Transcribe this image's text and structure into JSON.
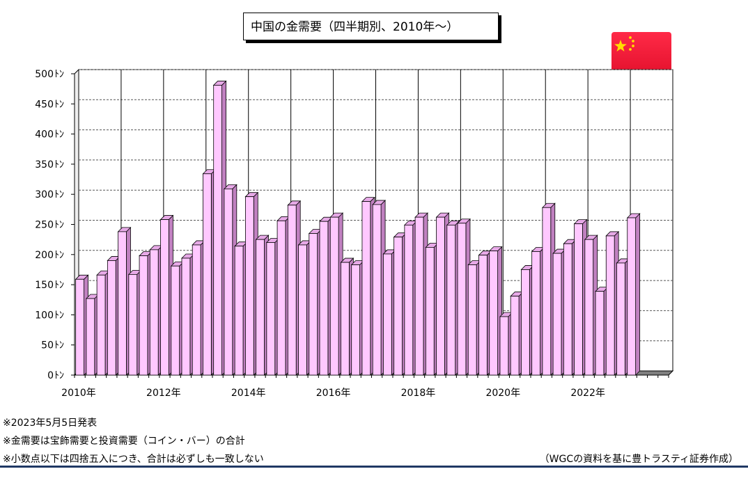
{
  "chart_data": {
    "type": "bar",
    "title": "中国の金需要（四半期別、2010年～）",
    "unit": "ﾄﾝ",
    "ylim": [
      0,
      500
    ],
    "y_ticks": [
      0,
      50,
      100,
      150,
      200,
      250,
      300,
      350,
      400,
      450,
      500
    ],
    "x_tick_labels": [
      "2010年",
      "2012年",
      "2014年",
      "2016年",
      "2018年",
      "2020年",
      "2022年"
    ],
    "categories": [
      "2010Q1",
      "2010Q2",
      "2010Q3",
      "2010Q4",
      "2011Q1",
      "2011Q2",
      "2011Q3",
      "2011Q4",
      "2012Q1",
      "2012Q2",
      "2012Q3",
      "2012Q4",
      "2013Q1",
      "2013Q2",
      "2013Q3",
      "2013Q4",
      "2014Q1",
      "2014Q2",
      "2014Q3",
      "2014Q4",
      "2015Q1",
      "2015Q2",
      "2015Q3",
      "2015Q4",
      "2016Q1",
      "2016Q2",
      "2016Q3",
      "2016Q4",
      "2017Q1",
      "2017Q2",
      "2017Q3",
      "2017Q4",
      "2018Q1",
      "2018Q2",
      "2018Q3",
      "2018Q4",
      "2019Q1",
      "2019Q2",
      "2019Q3",
      "2019Q4",
      "2020Q1",
      "2020Q2",
      "2020Q3",
      "2020Q4",
      "2021Q1",
      "2021Q2",
      "2021Q3",
      "2021Q4",
      "2022Q1",
      "2022Q2",
      "2022Q3",
      "2022Q4",
      "2023Q1"
    ],
    "values": [
      159,
      127,
      166,
      190,
      238,
      167,
      198,
      208,
      258,
      181,
      194,
      216,
      334,
      481,
      309,
      214,
      296,
      225,
      220,
      256,
      282,
      216,
      235,
      255,
      262,
      187,
      183,
      288,
      283,
      201,
      229,
      249,
      262,
      212,
      262,
      249,
      252,
      183,
      199,
      206,
      97,
      131,
      175,
      205,
      278,
      202,
      218,
      251,
      225,
      139,
      231,
      186,
      261
    ],
    "bar_color": "#ffc8ff",
    "grid": true
  },
  "notes": [
    "※2023年5月5日発表",
    "※金需要は宝飾需要と投資需要（コイン・バー）の合計",
    "※小数点以下は四捨五入につき、合計は必ずしも一致しない"
  ],
  "source": "（WGCの資料を基に豊トラスティ証券作成）",
  "flag_icon": "china-flag-icon",
  "colors": {
    "flag_red": "#e3102c",
    "flag_star": "#ffde00",
    "rule": "#1f3864"
  }
}
